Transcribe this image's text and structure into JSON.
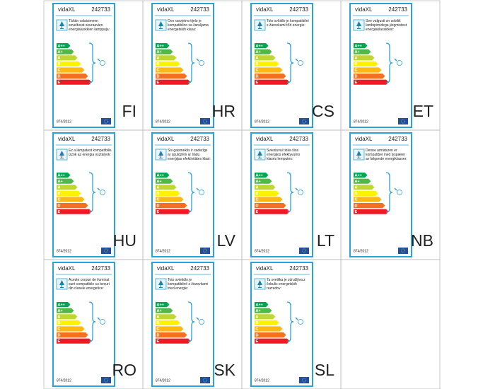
{
  "brand": "vidaXL",
  "model": "242733",
  "regulation": "874/2012",
  "energy_classes": [
    "A++",
    "A+",
    "A",
    "B",
    "C",
    "D",
    "E"
  ],
  "labels": [
    {
      "language": "FI",
      "text": "Tähän valaisimeen soveltuvat seuraavien energialuokkien lamppuja:"
    },
    {
      "language": "HR",
      "text": "Ovo rasvjetno tijelo je kompatibilno sa žaruljama energetskih klasa:"
    },
    {
      "language": "CS",
      "text": "Toto svítidlo je kompatibilní s žárovkami tříd energie:"
    },
    {
      "language": "ET",
      "text": "See valgusti on sobilik lambipirnidega järgmistest energiaklassidest:"
    },
    {
      "language": "HU",
      "text": "Ez a lámpatest kompatibilis izzók az energia osztályok:"
    },
    {
      "language": "LV",
      "text": "Šis gaismeklis ir saderīgs ar spuldzēm ar šādu enerģijas efektivitātes klasi:"
    },
    {
      "language": "LT",
      "text": "Šviestuvui tinka šios energijos efektyvumo klasės lemputės:"
    },
    {
      "language": "NB",
      "text": "Denne armaturen er kompatibel med lyspærer av følgende energiklasser:"
    },
    {
      "language": "RO",
      "text": "Aceste corpuri de iluminat sunt compatibile cu becuri din clasele energetice:"
    },
    {
      "language": "SK",
      "text": "Toto svietidlo je kompatibilné s žiarovkami tried energie:"
    },
    {
      "language": "SL",
      "text": "Ta svetilka je združljiva z čebulic energetskih razredov:"
    }
  ]
}
